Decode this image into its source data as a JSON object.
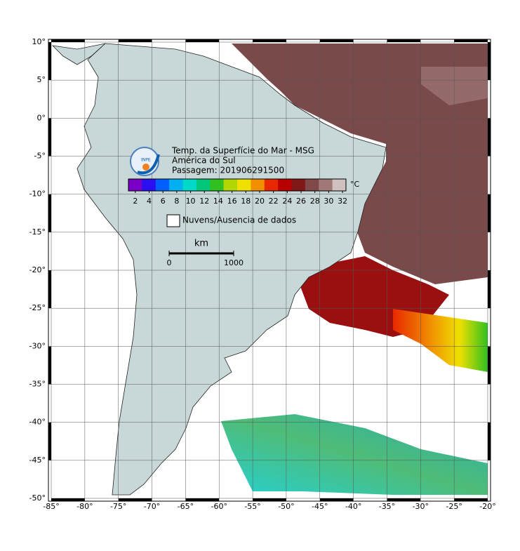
{
  "header": {
    "title_lines": [
      "Temp. da Superfície do Mar - MSG",
      "América do Sul",
      "Passagem: 201906291500"
    ],
    "logo": "INPE"
  },
  "colorbar": {
    "unit": "°C",
    "lim": [
      1,
      32.5
    ],
    "ticks": [
      2,
      4,
      6,
      8,
      10,
      12,
      14,
      16,
      18,
      20,
      22,
      24,
      26,
      28,
      30,
      32
    ],
    "colors": [
      "#7a00c8",
      "#2a10f0",
      "#0060ff",
      "#00b0f0",
      "#00d8c8",
      "#00c878",
      "#30c020",
      "#b0d800",
      "#f0e000",
      "#f09000",
      "#e82800",
      "#b80000",
      "#801818",
      "#804848",
      "#a07878",
      "#d0c0c0"
    ]
  },
  "legend": {
    "label": "Nuvens/Ausencia de dados"
  },
  "scale_bar": {
    "unit": "km",
    "ticks": [
      0,
      1000
    ]
  },
  "map": {
    "xlim": [
      -85,
      -20
    ],
    "ylim": [
      -50,
      10
    ],
    "xticks": [
      {
        "value": -85,
        "label": "-85°"
      },
      {
        "value": -80,
        "label": "-80°"
      },
      {
        "value": -75,
        "label": "-75°"
      },
      {
        "value": -70,
        "label": "-70°"
      },
      {
        "value": -65,
        "label": "-65°"
      },
      {
        "value": -60,
        "label": "-60°"
      },
      {
        "value": -55,
        "label": "-55°"
      },
      {
        "value": -50,
        "label": "-50°"
      },
      {
        "value": -45,
        "label": "-45°"
      },
      {
        "value": -40,
        "label": "-40°"
      },
      {
        "value": -35,
        "label": "-35°"
      },
      {
        "value": -30,
        "label": "-30°"
      },
      {
        "value": -25,
        "label": "-25°"
      },
      {
        "value": -20,
        "label": "-20°"
      }
    ],
    "yticks": [
      {
        "value": 10,
        "label": "10°"
      },
      {
        "value": 5,
        "label": "5°"
      },
      {
        "value": 0,
        "label": "0°"
      },
      {
        "value": -5,
        "label": "-5°"
      },
      {
        "value": -10,
        "label": "-10°"
      },
      {
        "value": -15,
        "label": "-15°"
      },
      {
        "value": -20,
        "label": "-20°"
      },
      {
        "value": -25,
        "label": "-25°"
      },
      {
        "value": -30,
        "label": "-30°"
      },
      {
        "value": -35,
        "label": "-35°"
      },
      {
        "value": -40,
        "label": "-40°"
      },
      {
        "value": -45,
        "label": "-45°"
      },
      {
        "value": -50,
        "label": "-50°"
      }
    ]
  }
}
